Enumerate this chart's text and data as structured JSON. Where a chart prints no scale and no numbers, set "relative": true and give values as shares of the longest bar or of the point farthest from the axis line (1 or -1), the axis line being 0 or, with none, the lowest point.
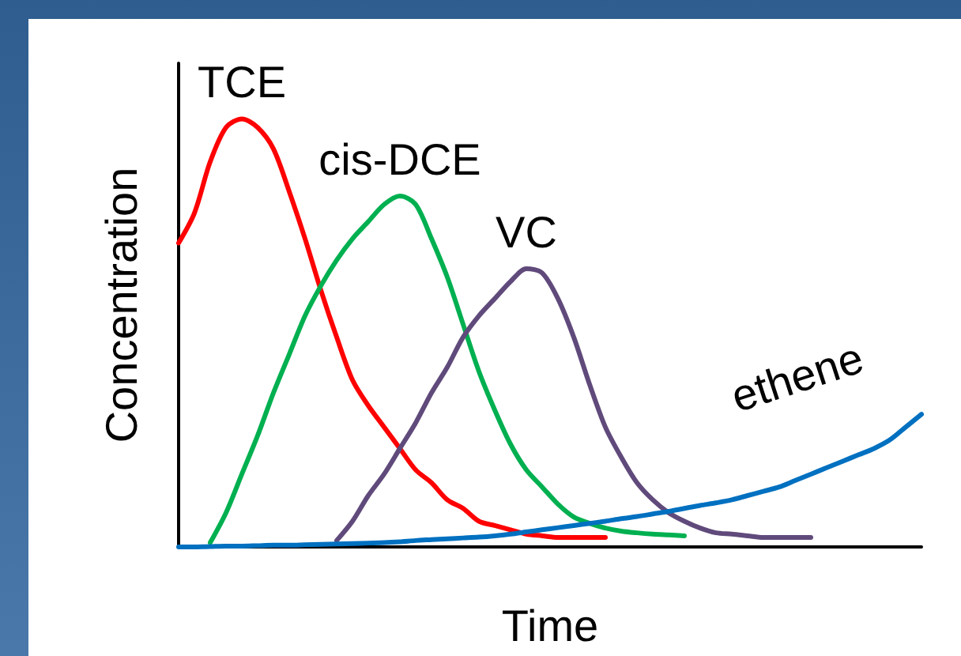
{
  "chart_data": {
    "type": "line",
    "relative": true,
    "xlabel": "Time",
    "ylabel": "Concentration",
    "grid": false,
    "legend": false,
    "marker": "none",
    "line_style": "solid",
    "categories": [
      null,
      null,
      null,
      null,
      null,
      null,
      null,
      null,
      null,
      null,
      null,
      null,
      null,
      null,
      null,
      null,
      null,
      null,
      null,
      null,
      null,
      null,
      null,
      null,
      null,
      null,
      null,
      null,
      null,
      null,
      null,
      null,
      null,
      null,
      null,
      null,
      null,
      null,
      null,
      null,
      null,
      null,
      null,
      null,
      null,
      null,
      null,
      null
    ],
    "series": [
      {
        "name": "TCE",
        "color": "#ff0000",
        "values": [
          0.71,
          0.78,
          0.9,
          0.98,
          1,
          0.98,
          0.93,
          0.83,
          0.72,
          0.6,
          0.49,
          0.39,
          0.33,
          0.28,
          0.23,
          0.18,
          0.15,
          0.11,
          0.09,
          0.06,
          0.05,
          0.04,
          0.03,
          0.026,
          0.022,
          0.022,
          0.022,
          0.022,
          null,
          null,
          null,
          null,
          null,
          null,
          null,
          null,
          null,
          null,
          null,
          null,
          null,
          null,
          null,
          null,
          null,
          null,
          null,
          null
        ]
      },
      {
        "name": "cis-DCE",
        "color": "#00b050",
        "values": [
          null,
          null,
          0.01,
          0.08,
          0.17,
          0.26,
          0.36,
          0.45,
          0.54,
          0.61,
          0.67,
          0.72,
          0.76,
          0.8,
          0.82,
          0.8,
          0.72,
          0.63,
          0.52,
          0.41,
          0.32,
          0.24,
          0.18,
          0.14,
          0.1,
          0.07,
          0.055,
          0.044,
          0.037,
          0.033,
          0.03,
          0.028,
          0.026,
          null,
          null,
          null,
          null,
          null,
          null,
          null,
          null,
          null,
          null,
          null,
          null,
          null,
          null,
          null
        ]
      },
      {
        "name": "VC",
        "color": "#604a7b",
        "values": [
          null,
          null,
          null,
          null,
          null,
          null,
          null,
          null,
          null,
          null,
          0.015,
          0.06,
          0.12,
          0.17,
          0.23,
          0.29,
          0.36,
          0.42,
          0.49,
          0.54,
          0.58,
          0.62,
          0.65,
          0.64,
          0.58,
          0.49,
          0.38,
          0.28,
          0.21,
          0.15,
          0.11,
          0.08,
          0.06,
          0.044,
          0.033,
          0.03,
          0.026,
          0.022,
          0.022,
          0.022,
          0.022,
          null,
          null,
          null,
          null,
          null,
          null,
          null
        ]
      },
      {
        "name": "ethene",
        "color": "#0070c0",
        "values": [
          0,
          0,
          0.001,
          0.002,
          0.002,
          0.003,
          0.004,
          0.004,
          0.005,
          0.006,
          0.007,
          0.008,
          0.009,
          0.01,
          0.012,
          0.015,
          0.017,
          0.019,
          0.021,
          0.023,
          0.026,
          0.03,
          0.035,
          0.04,
          0.045,
          0.05,
          0.055,
          0.06,
          0.066,
          0.071,
          0.077,
          0.083,
          0.09,
          0.097,
          0.103,
          0.11,
          0.12,
          0.13,
          0.14,
          0.155,
          0.17,
          0.185,
          0.2,
          0.215,
          0.23,
          0.25,
          0.28,
          0.31
        ]
      }
    ]
  }
}
